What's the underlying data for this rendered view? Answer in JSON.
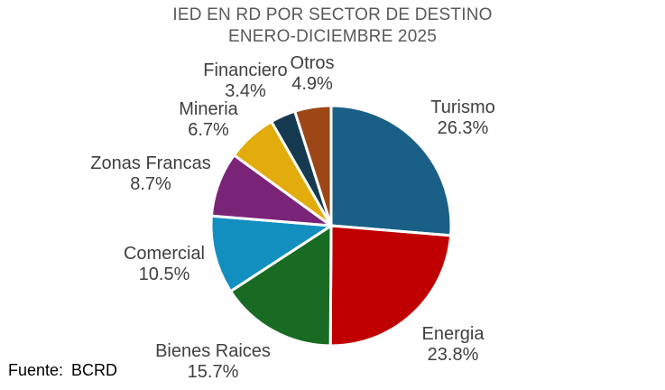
{
  "title": {
    "line1": "IED EN RD POR SECTOR DE DESTINO",
    "line2": "ENERO-DICIEMBRE 2025"
  },
  "source": {
    "label": "Fuente:",
    "value": "BCRD"
  },
  "colors": {
    "background": "#ffffff",
    "title_text": "#595959",
    "label_text": "#404040",
    "source_text": "#000000",
    "slice_border": "#ffffff"
  },
  "chart_data": {
    "type": "pie",
    "title": "IED EN RD POR SECTOR DE DESTINO ENERO-DICIEMBRE 2025",
    "start_angle_deg": 0,
    "direction": "clockwise",
    "legend_position": "outside-labels",
    "units": "percent",
    "slices": [
      {
        "name": "Turismo",
        "value": 26.3,
        "label": "26.3%",
        "color": "#1A6086"
      },
      {
        "name": "Energia",
        "value": 23.8,
        "label": "23.8%",
        "color": "#C00000"
      },
      {
        "name": "Bienes Raices",
        "value": 15.7,
        "label": "15.7%",
        "color": "#196B24"
      },
      {
        "name": "Comercial",
        "value": 10.5,
        "label": "10.5%",
        "color": "#128FBF"
      },
      {
        "name": "Zonas Francas",
        "value": 8.7,
        "label": "8.7%",
        "color": "#7A2478"
      },
      {
        "name": "Mineria",
        "value": 6.7,
        "label": "6.7%",
        "color": "#E2AC0C"
      },
      {
        "name": "Financiero",
        "value": 3.4,
        "label": "3.4%",
        "color": "#153A50"
      },
      {
        "name": "Otros",
        "value": 4.9,
        "label": "4.9%",
        "color": "#9D4616"
      }
    ]
  }
}
